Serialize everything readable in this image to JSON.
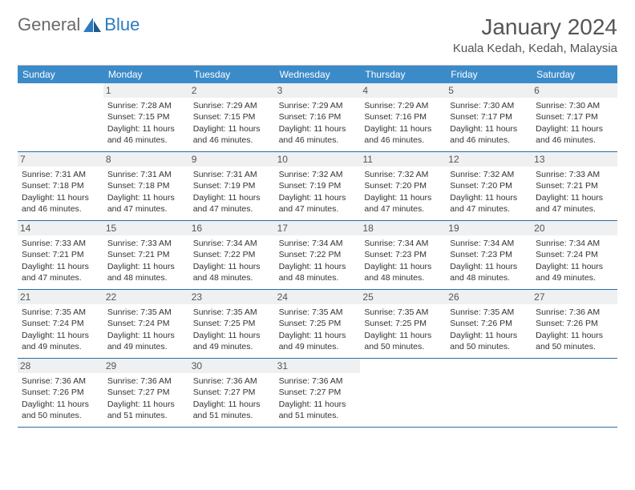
{
  "logo": {
    "text1": "General",
    "text2": "Blue"
  },
  "title": "January 2024",
  "location": "Kuala Kedah, Kedah, Malaysia",
  "colors": {
    "header_bg": "#3b8bc9",
    "header_text": "#ffffff",
    "cell_border": "#2b6ca3",
    "daynum_bg": "#eef0f1",
    "text": "#333333",
    "logo_gray": "#6a6a6a",
    "logo_blue": "#2b7bbf"
  },
  "day_headers": [
    "Sunday",
    "Monday",
    "Tuesday",
    "Wednesday",
    "Thursday",
    "Friday",
    "Saturday"
  ],
  "start_offset": 1,
  "days": [
    {
      "n": 1,
      "sunrise": "7:28 AM",
      "sunset": "7:15 PM",
      "daylight": "11 hours and 46 minutes."
    },
    {
      "n": 2,
      "sunrise": "7:29 AM",
      "sunset": "7:15 PM",
      "daylight": "11 hours and 46 minutes."
    },
    {
      "n": 3,
      "sunrise": "7:29 AM",
      "sunset": "7:16 PM",
      "daylight": "11 hours and 46 minutes."
    },
    {
      "n": 4,
      "sunrise": "7:29 AM",
      "sunset": "7:16 PM",
      "daylight": "11 hours and 46 minutes."
    },
    {
      "n": 5,
      "sunrise": "7:30 AM",
      "sunset": "7:17 PM",
      "daylight": "11 hours and 46 minutes."
    },
    {
      "n": 6,
      "sunrise": "7:30 AM",
      "sunset": "7:17 PM",
      "daylight": "11 hours and 46 minutes."
    },
    {
      "n": 7,
      "sunrise": "7:31 AM",
      "sunset": "7:18 PM",
      "daylight": "11 hours and 46 minutes."
    },
    {
      "n": 8,
      "sunrise": "7:31 AM",
      "sunset": "7:18 PM",
      "daylight": "11 hours and 47 minutes."
    },
    {
      "n": 9,
      "sunrise": "7:31 AM",
      "sunset": "7:19 PM",
      "daylight": "11 hours and 47 minutes."
    },
    {
      "n": 10,
      "sunrise": "7:32 AM",
      "sunset": "7:19 PM",
      "daylight": "11 hours and 47 minutes."
    },
    {
      "n": 11,
      "sunrise": "7:32 AM",
      "sunset": "7:20 PM",
      "daylight": "11 hours and 47 minutes."
    },
    {
      "n": 12,
      "sunrise": "7:32 AM",
      "sunset": "7:20 PM",
      "daylight": "11 hours and 47 minutes."
    },
    {
      "n": 13,
      "sunrise": "7:33 AM",
      "sunset": "7:21 PM",
      "daylight": "11 hours and 47 minutes."
    },
    {
      "n": 14,
      "sunrise": "7:33 AM",
      "sunset": "7:21 PM",
      "daylight": "11 hours and 47 minutes."
    },
    {
      "n": 15,
      "sunrise": "7:33 AM",
      "sunset": "7:21 PM",
      "daylight": "11 hours and 48 minutes."
    },
    {
      "n": 16,
      "sunrise": "7:34 AM",
      "sunset": "7:22 PM",
      "daylight": "11 hours and 48 minutes."
    },
    {
      "n": 17,
      "sunrise": "7:34 AM",
      "sunset": "7:22 PM",
      "daylight": "11 hours and 48 minutes."
    },
    {
      "n": 18,
      "sunrise": "7:34 AM",
      "sunset": "7:23 PM",
      "daylight": "11 hours and 48 minutes."
    },
    {
      "n": 19,
      "sunrise": "7:34 AM",
      "sunset": "7:23 PM",
      "daylight": "11 hours and 48 minutes."
    },
    {
      "n": 20,
      "sunrise": "7:34 AM",
      "sunset": "7:24 PM",
      "daylight": "11 hours and 49 minutes."
    },
    {
      "n": 21,
      "sunrise": "7:35 AM",
      "sunset": "7:24 PM",
      "daylight": "11 hours and 49 minutes."
    },
    {
      "n": 22,
      "sunrise": "7:35 AM",
      "sunset": "7:24 PM",
      "daylight": "11 hours and 49 minutes."
    },
    {
      "n": 23,
      "sunrise": "7:35 AM",
      "sunset": "7:25 PM",
      "daylight": "11 hours and 49 minutes."
    },
    {
      "n": 24,
      "sunrise": "7:35 AM",
      "sunset": "7:25 PM",
      "daylight": "11 hours and 49 minutes."
    },
    {
      "n": 25,
      "sunrise": "7:35 AM",
      "sunset": "7:25 PM",
      "daylight": "11 hours and 50 minutes."
    },
    {
      "n": 26,
      "sunrise": "7:35 AM",
      "sunset": "7:26 PM",
      "daylight": "11 hours and 50 minutes."
    },
    {
      "n": 27,
      "sunrise": "7:36 AM",
      "sunset": "7:26 PM",
      "daylight": "11 hours and 50 minutes."
    },
    {
      "n": 28,
      "sunrise": "7:36 AM",
      "sunset": "7:26 PM",
      "daylight": "11 hours and 50 minutes."
    },
    {
      "n": 29,
      "sunrise": "7:36 AM",
      "sunset": "7:27 PM",
      "daylight": "11 hours and 51 minutes."
    },
    {
      "n": 30,
      "sunrise": "7:36 AM",
      "sunset": "7:27 PM",
      "daylight": "11 hours and 51 minutes."
    },
    {
      "n": 31,
      "sunrise": "7:36 AM",
      "sunset": "7:27 PM",
      "daylight": "11 hours and 51 minutes."
    }
  ],
  "labels": {
    "sunrise": "Sunrise:",
    "sunset": "Sunset:",
    "daylight": "Daylight:"
  }
}
